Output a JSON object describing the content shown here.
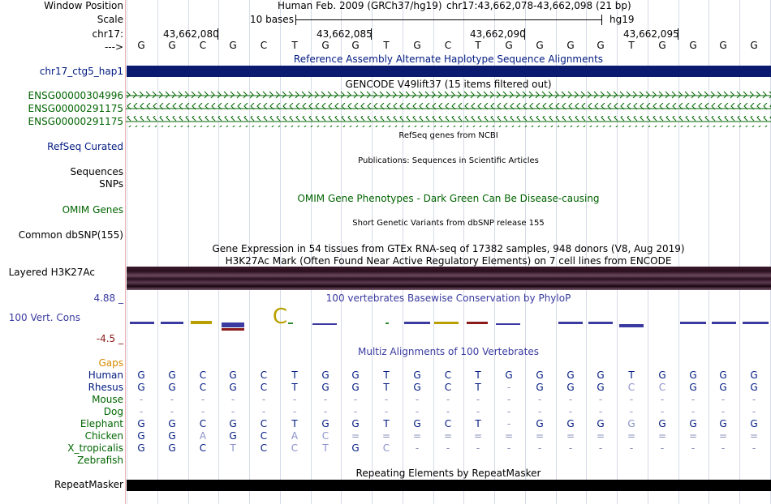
{
  "labels": {
    "window_position": "Window Position",
    "scale": "Scale",
    "chrom": "chr17:",
    "arrow": "--->",
    "hap1": "chr17_ctg5_hap1",
    "ensg1": "ENSG00000304996",
    "ensg2": "ENSG00000291175",
    "ensg3": "ENSG00000291175",
    "refseq": "RefSeq Curated",
    "sequences": "Sequences",
    "snps": "SNPs",
    "omim": "OMIM Genes",
    "dbsnp": "Common dbSNP(155)",
    "h3k27": "Layered H3K27Ac",
    "phylop_max": "4.88 _",
    "phylop_track": "100 Vert. Cons",
    "phylop_min": "-4.5 _",
    "gaps": "Gaps",
    "repeatmasker": "RepeatMasker"
  },
  "header": {
    "assembly": "Human Feb. 2009 (GRCh37/hg19)",
    "position": "chr17:43,662,078-43,662,098 (21 bp)",
    "scale_text": "10 bases",
    "scale_db": "hg19",
    "coords": [
      "43,662,080",
      "43,662,085",
      "43,662,090",
      "43,662,095"
    ]
  },
  "bases": [
    "G",
    "G",
    "C",
    "G",
    "C",
    "T",
    "G",
    "G",
    "T",
    "G",
    "C",
    "T",
    "G",
    "G",
    "G",
    "G",
    "T",
    "G",
    "G",
    "G",
    "G"
  ],
  "tracks": {
    "alt_haplotype": "Reference Assembly Alternate Haplotype Sequence Alignments",
    "gencode": "GENCODE V49lift37 (15 items filtered out)",
    "refseq": "RefSeq genes from NCBI",
    "publications": "Publications: Sequences in Scientific Articles",
    "omim": "OMIM Gene Phenotypes - Dark Green Can Be Disease-causing",
    "dbsnp": "Short Genetic Variants from dbSNP release 155",
    "gtex": "Gene Expression in 54 tissues from GTEx RNA-seq of 17382 samples, 948 donors (V8, Aug 2019)",
    "h3k27": "H3K27Ac Mark (Often Found Near Active Regulatory Elements) on 7 cell lines from ENCODE",
    "phylop": "100 vertebrates Basewise Conservation by PhyloP",
    "multiz": "Multiz Alignments of 100 Vertebrates",
    "repeatmasker": "Repeating Elements by RepeatMasker"
  },
  "alignment": [
    {
      "species": "Human",
      "bases": [
        "G",
        "G",
        "C",
        "G",
        "C",
        "T",
        "G",
        "G",
        "T",
        "G",
        "C",
        "T",
        "G",
        "G",
        "G",
        "G",
        "T",
        "G",
        "G",
        "G",
        "G"
      ]
    },
    {
      "species": "Rhesus",
      "bases": [
        "G",
        "G",
        "C",
        "G",
        "C",
        "T",
        "G",
        "G",
        "T",
        "G",
        "C",
        "T",
        "-",
        "G",
        "G",
        "G",
        "C",
        "C",
        "G",
        "G",
        "G"
      ]
    },
    {
      "species": "Mouse",
      "bases": [
        "-",
        "-",
        "-",
        "-",
        "-",
        "-",
        "-",
        "-",
        "-",
        "-",
        "-",
        "-",
        "-",
        "-",
        "-",
        "-",
        "-",
        "-",
        "-",
        "-",
        "-"
      ]
    },
    {
      "species": "Dog",
      "bases": [
        "-",
        "-",
        "-",
        "-",
        "-",
        "-",
        "-",
        "-",
        "-",
        "-",
        "-",
        "-",
        "-",
        "-",
        "-",
        "-",
        "-",
        "-",
        "-",
        "-",
        "-"
      ]
    },
    {
      "species": "Elephant",
      "bases": [
        "G",
        "G",
        "C",
        "G",
        "C",
        "T",
        "G",
        "G",
        "T",
        "G",
        "C",
        "T",
        "-",
        "G",
        "G",
        "G",
        "G",
        "G",
        "G",
        "G",
        "G"
      ]
    },
    {
      "species": "Chicken",
      "bases": [
        "G",
        "G",
        "A",
        "G",
        "C",
        "A",
        "C",
        "=",
        "=",
        "=",
        "=",
        "=",
        "=",
        "=",
        "=",
        "=",
        "=",
        "=",
        "=",
        "=",
        "="
      ]
    },
    {
      "species": "X_tropicalis",
      "bases": [
        "G",
        "G",
        "C",
        "T",
        "C",
        "C",
        "T",
        "G",
        "C",
        "-",
        "-",
        "-",
        "-",
        "-",
        "-",
        "-",
        "-",
        "-",
        "-",
        "-",
        "-"
      ]
    },
    {
      "species": "Zebrafish",
      "bases": []
    }
  ],
  "colors": {
    "navy_bar": "#0a1a6e",
    "gene_green": "#006400",
    "species_green": "#006600",
    "base_blue": "#001a80",
    "phylop_blue": "#3a3aa0",
    "phylop_red": "#8b1a1a",
    "gaps_orange": "#d68a00",
    "h3k27_dark": "#2a0f1e"
  }
}
